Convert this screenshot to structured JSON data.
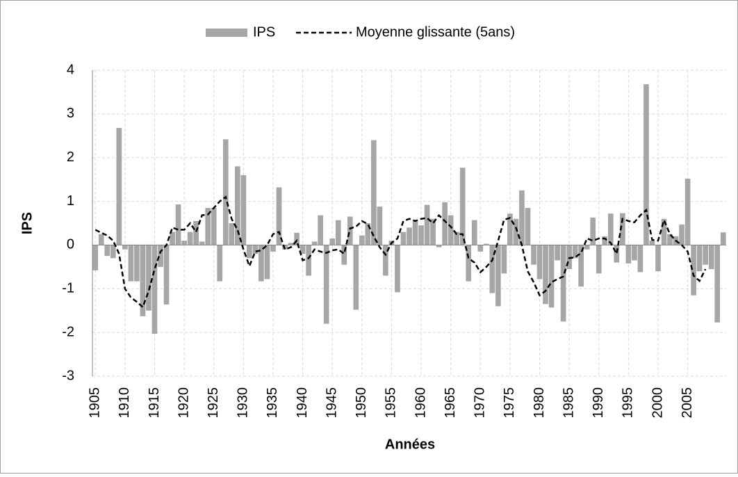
{
  "chart_data": {
    "type": "bar_line",
    "categories": [
      "1905",
      null,
      null,
      null,
      null,
      "1910",
      null,
      null,
      null,
      null,
      "1915",
      null,
      null,
      null,
      null,
      "1920",
      null,
      null,
      null,
      null,
      "1925",
      null,
      null,
      null,
      null,
      "1930",
      null,
      null,
      null,
      null,
      "1935",
      null,
      null,
      null,
      null,
      "1940",
      null,
      null,
      null,
      null,
      "1945",
      null,
      null,
      null,
      null,
      "1950",
      null,
      null,
      null,
      null,
      "1955",
      null,
      null,
      null,
      null,
      "1960",
      null,
      null,
      null,
      null,
      "1965",
      null,
      null,
      null,
      null,
      "1970",
      null,
      null,
      null,
      null,
      "1975",
      null,
      null,
      null,
      null,
      "1980",
      null,
      null,
      null,
      null,
      "1985",
      null,
      null,
      null,
      null,
      "1990",
      null,
      null,
      null,
      null,
      "1995",
      null,
      null,
      null,
      null,
      "2000",
      null,
      null,
      null,
      null,
      "2005",
      null,
      null,
      null,
      null,
      null,
      null
    ],
    "series": [
      {
        "name": "IPS",
        "type": "bar",
        "color": "#a6a6a6",
        "values": [
          -0.58,
          0.25,
          -0.25,
          -0.3,
          2.68,
          -0.1,
          -0.83,
          -0.83,
          -1.63,
          -1.5,
          -2.03,
          -0.5,
          -1.36,
          0.3,
          0.93,
          0.1,
          0.3,
          0.55,
          0.08,
          0.85,
          0.85,
          -0.83,
          2.42,
          0.5,
          1.8,
          1.6,
          -0.3,
          -0.2,
          -0.83,
          -0.78,
          -0.15,
          1.32,
          -0.1,
          0.05,
          0.28,
          -0.2,
          -0.7,
          0.08,
          0.68,
          -1.8,
          0.15,
          0.57,
          -0.45,
          0.65,
          -1.48,
          0.22,
          0.5,
          2.4,
          0.88,
          -0.7,
          0.1,
          -1.08,
          0.3,
          0.4,
          0.55,
          0.45,
          0.92,
          0.6,
          -0.05,
          0.98,
          0.68,
          0.3,
          1.77,
          -0.83,
          0.57,
          -0.15,
          0.03,
          -1.1,
          -1.4,
          -0.65,
          0.72,
          0.6,
          1.25,
          0.85,
          -0.45,
          -0.78,
          -1.35,
          -1.43,
          -0.35,
          -1.75,
          -0.55,
          -0.3,
          -0.95,
          -0.1,
          0.63,
          -0.65,
          0.2,
          0.72,
          -0.4,
          0.73,
          -0.42,
          -0.35,
          -0.62,
          3.68,
          0.1,
          -0.6,
          0.6,
          0.25,
          0.2,
          0.47,
          1.52,
          -1.15,
          -0.6,
          -0.45,
          -0.55,
          -1.77,
          0.29
        ]
      },
      {
        "name": "Moyenne glissante (5ans)",
        "type": "line",
        "color": "#000000",
        "values": [
          0.35,
          0.28,
          0.22,
          0.1,
          -0.2,
          -1.0,
          -1.2,
          -1.3,
          -1.42,
          -1.05,
          -0.55,
          -0.15,
          0.0,
          0.4,
          0.35,
          0.35,
          0.5,
          0.3,
          0.68,
          0.7,
          0.85,
          1.0,
          1.1,
          0.6,
          0.35,
          -0.1,
          -0.48,
          -0.15,
          -0.12,
          0.0,
          0.25,
          0.3,
          -0.1,
          -0.05,
          0.1,
          -0.35,
          -0.3,
          -0.1,
          -0.15,
          -0.18,
          -0.12,
          -0.1,
          -0.2,
          0.38,
          0.42,
          0.55,
          0.48,
          0.2,
          -0.05,
          -0.22,
          0.05,
          0.15,
          0.55,
          0.6,
          0.55,
          0.6,
          0.62,
          0.5,
          0.68,
          0.55,
          0.42,
          0.25,
          0.25,
          -0.3,
          -0.4,
          -0.62,
          -0.5,
          -0.35,
          0.1,
          0.58,
          0.62,
          0.4,
          0.0,
          -0.6,
          -0.85,
          -1.15,
          -1.05,
          -0.85,
          -0.78,
          -0.72,
          -0.3,
          -0.28,
          -0.18,
          0.15,
          0.1,
          0.15,
          0.15,
          0.05,
          -0.2,
          0.6,
          0.55,
          0.52,
          0.68,
          0.8,
          0.12,
          0.1,
          0.57,
          0.25,
          0.1,
          0.0,
          -0.15,
          -0.7,
          -0.82,
          -0.55,
          null,
          null,
          null
        ]
      }
    ],
    "xlabel": "Années",
    "ylabel": "IPS",
    "ylim": [
      -3,
      4
    ],
    "yticks": [
      -3,
      -2,
      -1,
      0,
      1,
      2,
      3,
      4
    ],
    "grid": true,
    "legend": "top"
  }
}
